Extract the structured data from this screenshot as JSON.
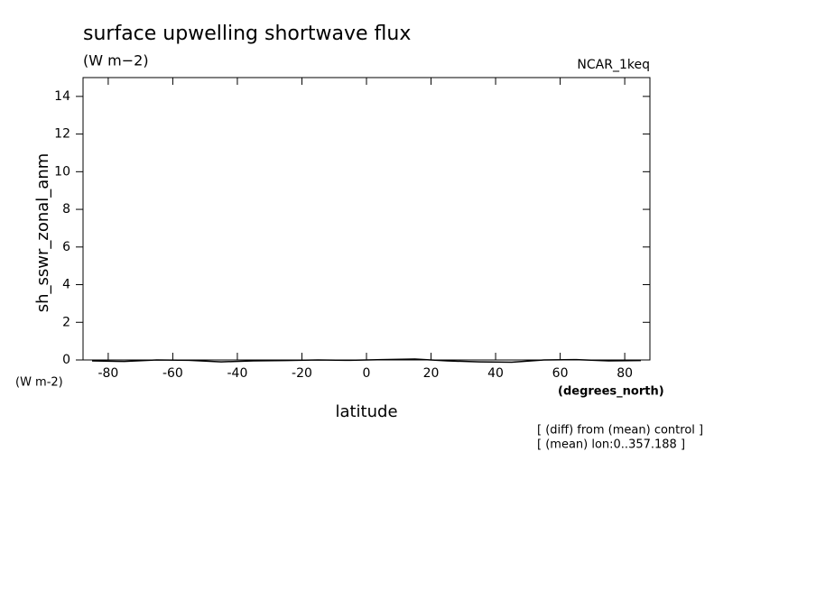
{
  "chart_data": {
    "type": "line",
    "title": "surface upwelling shortwave flux",
    "subtitle": "(W m−2)",
    "dataset": "NCAR_1keq",
    "y_label": "sh_sswr_zonal_anm",
    "y_units": "(W m-2)",
    "x_units": "(degrees_north)",
    "x_label": "latitude",
    "notes": [
      "[ (diff) from (mean) control ]",
      "[ (mean) lon:0..357.188 ]"
    ],
    "x": [
      -85,
      -75,
      -65,
      -55,
      -45,
      -35,
      -25,
      -15,
      -5,
      5,
      15,
      25,
      35,
      45,
      55,
      65,
      75,
      85
    ],
    "series": [
      {
        "name": "sh_sswr_zonal_anm",
        "color": "#000000",
        "values": [
          -0.05,
          -0.08,
          0,
          -0.02,
          -0.1,
          -0.05,
          -0.03,
          0,
          -0.02,
          0.02,
          0.05,
          -0.05,
          -0.1,
          -0.12,
          0,
          0.02,
          -0.05,
          -0.03
        ]
      }
    ],
    "xlim": [
      -87.8,
      87.8
    ],
    "ylim": [
      0,
      15
    ],
    "xticks": [
      -80,
      -60,
      -40,
      -20,
      0,
      20,
      40,
      60,
      80
    ],
    "yticks": [
      0,
      2,
      4,
      6,
      8,
      10,
      12,
      14
    ],
    "grid": false
  }
}
